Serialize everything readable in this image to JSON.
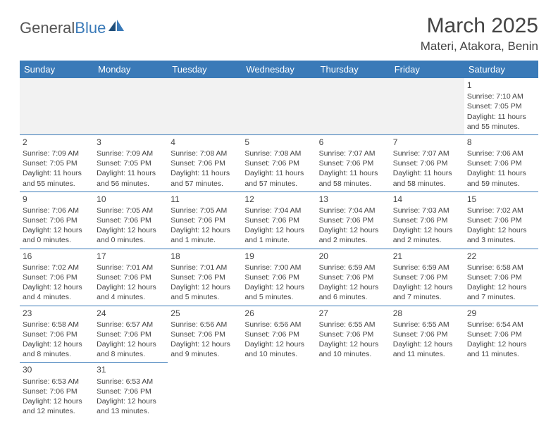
{
  "logo": {
    "text1": "General",
    "text2": "Blue"
  },
  "title": "March 2025",
  "location": "Materi, Atakora, Benin",
  "colors": {
    "header_bg": "#3a7ab8",
    "header_text": "#ffffff",
    "border": "#3a7ab8",
    "text": "#444444",
    "empty_bg": "#f2f2f2"
  },
  "weekdays": [
    "Sunday",
    "Monday",
    "Tuesday",
    "Wednesday",
    "Thursday",
    "Friday",
    "Saturday"
  ],
  "weeks": [
    [
      null,
      null,
      null,
      null,
      null,
      null,
      {
        "d": "1",
        "sr": "Sunrise: 7:10 AM",
        "ss": "Sunset: 7:05 PM",
        "dl": "Daylight: 11 hours and 55 minutes."
      }
    ],
    [
      {
        "d": "2",
        "sr": "Sunrise: 7:09 AM",
        "ss": "Sunset: 7:05 PM",
        "dl": "Daylight: 11 hours and 55 minutes."
      },
      {
        "d": "3",
        "sr": "Sunrise: 7:09 AM",
        "ss": "Sunset: 7:05 PM",
        "dl": "Daylight: 11 hours and 56 minutes."
      },
      {
        "d": "4",
        "sr": "Sunrise: 7:08 AM",
        "ss": "Sunset: 7:06 PM",
        "dl": "Daylight: 11 hours and 57 minutes."
      },
      {
        "d": "5",
        "sr": "Sunrise: 7:08 AM",
        "ss": "Sunset: 7:06 PM",
        "dl": "Daylight: 11 hours and 57 minutes."
      },
      {
        "d": "6",
        "sr": "Sunrise: 7:07 AM",
        "ss": "Sunset: 7:06 PM",
        "dl": "Daylight: 11 hours and 58 minutes."
      },
      {
        "d": "7",
        "sr": "Sunrise: 7:07 AM",
        "ss": "Sunset: 7:06 PM",
        "dl": "Daylight: 11 hours and 58 minutes."
      },
      {
        "d": "8",
        "sr": "Sunrise: 7:06 AM",
        "ss": "Sunset: 7:06 PM",
        "dl": "Daylight: 11 hours and 59 minutes."
      }
    ],
    [
      {
        "d": "9",
        "sr": "Sunrise: 7:06 AM",
        "ss": "Sunset: 7:06 PM",
        "dl": "Daylight: 12 hours and 0 minutes."
      },
      {
        "d": "10",
        "sr": "Sunrise: 7:05 AM",
        "ss": "Sunset: 7:06 PM",
        "dl": "Daylight: 12 hours and 0 minutes."
      },
      {
        "d": "11",
        "sr": "Sunrise: 7:05 AM",
        "ss": "Sunset: 7:06 PM",
        "dl": "Daylight: 12 hours and 1 minute."
      },
      {
        "d": "12",
        "sr": "Sunrise: 7:04 AM",
        "ss": "Sunset: 7:06 PM",
        "dl": "Daylight: 12 hours and 1 minute."
      },
      {
        "d": "13",
        "sr": "Sunrise: 7:04 AM",
        "ss": "Sunset: 7:06 PM",
        "dl": "Daylight: 12 hours and 2 minutes."
      },
      {
        "d": "14",
        "sr": "Sunrise: 7:03 AM",
        "ss": "Sunset: 7:06 PM",
        "dl": "Daylight: 12 hours and 2 minutes."
      },
      {
        "d": "15",
        "sr": "Sunrise: 7:02 AM",
        "ss": "Sunset: 7:06 PM",
        "dl": "Daylight: 12 hours and 3 minutes."
      }
    ],
    [
      {
        "d": "16",
        "sr": "Sunrise: 7:02 AM",
        "ss": "Sunset: 7:06 PM",
        "dl": "Daylight: 12 hours and 4 minutes."
      },
      {
        "d": "17",
        "sr": "Sunrise: 7:01 AM",
        "ss": "Sunset: 7:06 PM",
        "dl": "Daylight: 12 hours and 4 minutes."
      },
      {
        "d": "18",
        "sr": "Sunrise: 7:01 AM",
        "ss": "Sunset: 7:06 PM",
        "dl": "Daylight: 12 hours and 5 minutes."
      },
      {
        "d": "19",
        "sr": "Sunrise: 7:00 AM",
        "ss": "Sunset: 7:06 PM",
        "dl": "Daylight: 12 hours and 5 minutes."
      },
      {
        "d": "20",
        "sr": "Sunrise: 6:59 AM",
        "ss": "Sunset: 7:06 PM",
        "dl": "Daylight: 12 hours and 6 minutes."
      },
      {
        "d": "21",
        "sr": "Sunrise: 6:59 AM",
        "ss": "Sunset: 7:06 PM",
        "dl": "Daylight: 12 hours and 7 minutes."
      },
      {
        "d": "22",
        "sr": "Sunrise: 6:58 AM",
        "ss": "Sunset: 7:06 PM",
        "dl": "Daylight: 12 hours and 7 minutes."
      }
    ],
    [
      {
        "d": "23",
        "sr": "Sunrise: 6:58 AM",
        "ss": "Sunset: 7:06 PM",
        "dl": "Daylight: 12 hours and 8 minutes."
      },
      {
        "d": "24",
        "sr": "Sunrise: 6:57 AM",
        "ss": "Sunset: 7:06 PM",
        "dl": "Daylight: 12 hours and 8 minutes."
      },
      {
        "d": "25",
        "sr": "Sunrise: 6:56 AM",
        "ss": "Sunset: 7:06 PM",
        "dl": "Daylight: 12 hours and 9 minutes."
      },
      {
        "d": "26",
        "sr": "Sunrise: 6:56 AM",
        "ss": "Sunset: 7:06 PM",
        "dl": "Daylight: 12 hours and 10 minutes."
      },
      {
        "d": "27",
        "sr": "Sunrise: 6:55 AM",
        "ss": "Sunset: 7:06 PM",
        "dl": "Daylight: 12 hours and 10 minutes."
      },
      {
        "d": "28",
        "sr": "Sunrise: 6:55 AM",
        "ss": "Sunset: 7:06 PM",
        "dl": "Daylight: 12 hours and 11 minutes."
      },
      {
        "d": "29",
        "sr": "Sunrise: 6:54 AM",
        "ss": "Sunset: 7:06 PM",
        "dl": "Daylight: 12 hours and 11 minutes."
      }
    ],
    [
      {
        "d": "30",
        "sr": "Sunrise: 6:53 AM",
        "ss": "Sunset: 7:06 PM",
        "dl": "Daylight: 12 hours and 12 minutes."
      },
      {
        "d": "31",
        "sr": "Sunrise: 6:53 AM",
        "ss": "Sunset: 7:06 PM",
        "dl": "Daylight: 12 hours and 13 minutes."
      },
      null,
      null,
      null,
      null,
      null
    ]
  ]
}
